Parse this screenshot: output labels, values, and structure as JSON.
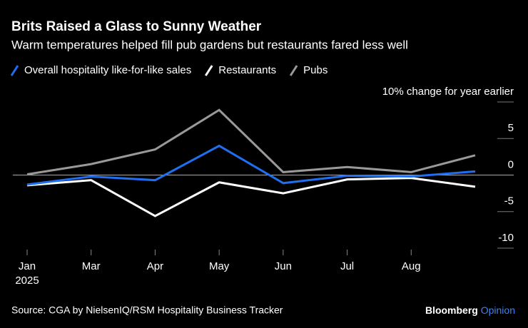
{
  "chart_data": {
    "type": "line",
    "title": "Brits Raised a Glass to Sunny Weather",
    "subtitle": "Warm temperatures helped fill pub gardens but restaurants fared less well",
    "categories": [
      "Jan 2025",
      "Mar",
      "Apr",
      "May",
      "Jun",
      "Jul",
      "Aug",
      null
    ],
    "series": [
      {
        "name": "Overall hospitality like-for-like sales",
        "color": "#1f6ff0",
        "values": [
          -1.3,
          -0.2,
          -0.7,
          4.0,
          -1.1,
          -0.1,
          -0.2,
          0.5
        ]
      },
      {
        "name": "Restaurants",
        "color": "#ffffff",
        "values": [
          -1.4,
          -0.7,
          -5.6,
          -1.0,
          -2.5,
          -0.6,
          -0.4,
          -1.6
        ]
      },
      {
        "name": "Pubs",
        "color": "#999999",
        "values": [
          0.1,
          1.5,
          3.5,
          8.9,
          0.4,
          1.1,
          0.4,
          2.7
        ]
      }
    ],
    "ylim": [
      -10,
      10
    ],
    "yticks": [
      {
        "value": 10,
        "label": "10% change for year earlier"
      },
      5,
      0,
      -5,
      -10
    ],
    "grid": true,
    "legend": "top",
    "source": "Source: CGA by NielsenIQ/RSM Hospitality Business Tracker",
    "branding": [
      "Bloomberg",
      "Opinion"
    ]
  }
}
